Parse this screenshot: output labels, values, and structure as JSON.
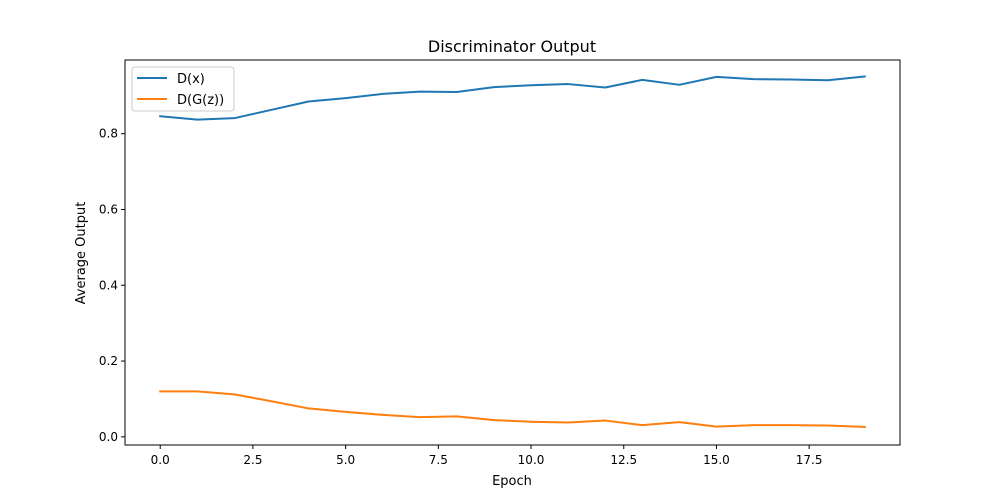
{
  "chart_data": {
    "type": "line",
    "title": "Discriminator Output",
    "xlabel": "Epoch",
    "ylabel": "Average Output",
    "xlim": [
      -0.95,
      19.95
    ],
    "ylim": [
      -0.0215,
      0.9945
    ],
    "xticks": [
      0.0,
      2.5,
      5.0,
      7.5,
      10.0,
      12.5,
      15.0,
      17.5
    ],
    "xtick_labels": [
      "0.0",
      "2.5",
      "5.0",
      "7.5",
      "10.0",
      "12.5",
      "15.0",
      "17.5"
    ],
    "yticks": [
      0.0,
      0.2,
      0.4,
      0.6,
      0.8
    ],
    "ytick_labels": [
      "0.0",
      "0.2",
      "0.4",
      "0.6",
      "0.8"
    ],
    "grid": false,
    "legend_position": "top-left",
    "x": [
      0,
      1,
      2,
      3,
      4,
      5,
      6,
      7,
      8,
      9,
      10,
      11,
      12,
      13,
      14,
      15,
      16,
      17,
      18,
      19
    ],
    "series": [
      {
        "name": "D(x)",
        "color": "#1f77b4",
        "values": [
          0.846,
          0.837,
          0.841,
          0.863,
          0.885,
          0.894,
          0.905,
          0.911,
          0.91,
          0.923,
          0.928,
          0.931,
          0.922,
          0.942,
          0.929,
          0.95,
          0.944,
          0.943,
          0.941,
          0.951
        ]
      },
      {
        "name": "D(G(z))",
        "color": "#ff7f0e",
        "values": [
          0.12,
          0.12,
          0.112,
          0.094,
          0.075,
          0.066,
          0.058,
          0.052,
          0.054,
          0.044,
          0.04,
          0.038,
          0.043,
          0.031,
          0.039,
          0.027,
          0.031,
          0.031,
          0.03,
          0.026
        ]
      }
    ]
  }
}
